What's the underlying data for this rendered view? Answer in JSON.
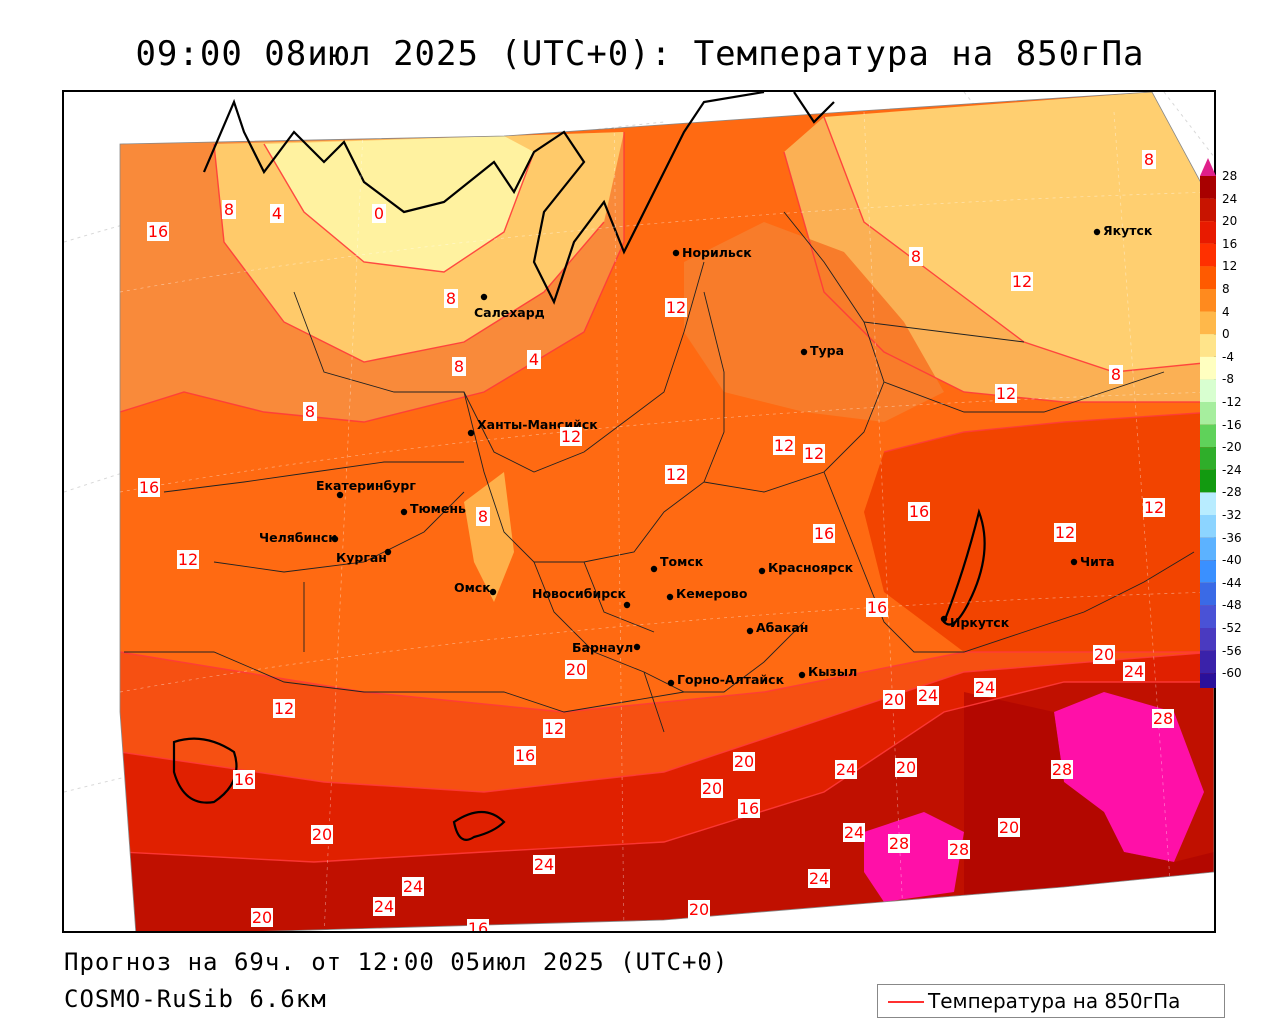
{
  "title": "09:00 08июл 2025 (UTC+0): Температура на 850гПа",
  "footer": {
    "forecast": "Прогноз на 69ч. от 12:00 05июл 2025 (UTC+0)",
    "model": "COSMO-RuSib 6.6км"
  },
  "legend": {
    "label": "Температура на 850гПа",
    "line_color": "#ff3030"
  },
  "colors": {
    "c0": "#fffbb0",
    "c4": "#ffe37a",
    "c8": "#f9a24a",
    "c12": "#ff6a12",
    "c16": "#ff4a00",
    "c20": "#e81a00",
    "c24": "#c81400",
    "c28": "#a80000",
    "c28plus": "#ff00aa",
    "label_text": "#ff0000",
    "coast": "#000000"
  },
  "scale": {
    "ticks": [
      "28",
      "24",
      "20",
      "16",
      "12",
      "8",
      "4",
      "0",
      "-4",
      "-8",
      "-12",
      "-16",
      "-20",
      "-24",
      "-28",
      "-32",
      "-36",
      "-40",
      "-44",
      "-48",
      "-52",
      "-56",
      "-60"
    ],
    "swatches": [
      "#a80000",
      "#c81400",
      "#e81a00",
      "#ff3000",
      "#ff5a00",
      "#ff8a1e",
      "#ffb84a",
      "#ffe48a",
      "#ffffc0",
      "#d8ffd0",
      "#a6ee9e",
      "#5fd25a",
      "#2fae2a",
      "#129a10",
      "#b8ecff",
      "#8cd4ff",
      "#5cb2ff",
      "#3a90ff",
      "#3a6ae6",
      "#4a52d6",
      "#4a3ac0",
      "#3a22aa",
      "#2a109a",
      "#1a0088"
    ]
  },
  "cities": [
    {
      "name": "Норильск",
      "id": "norilsk"
    },
    {
      "name": "Якутск",
      "id": "yakutsk"
    },
    {
      "name": "Салехард",
      "id": "salekhard"
    },
    {
      "name": "Тура",
      "id": "tura"
    },
    {
      "name": "Ханты-Мансийск",
      "id": "khanty"
    },
    {
      "name": "Екатеринбург",
      "id": "ekat"
    },
    {
      "name": "Тюмень",
      "id": "tyumen"
    },
    {
      "name": "Челябинск",
      "id": "chel"
    },
    {
      "name": "Курган",
      "id": "kurgan"
    },
    {
      "name": "Омск",
      "id": "omsk"
    },
    {
      "name": "Новосибирск",
      "id": "nsk"
    },
    {
      "name": "Томск",
      "id": "tomsk"
    },
    {
      "name": "Кемерово",
      "id": "kemerovo"
    },
    {
      "name": "Красноярск",
      "id": "krasnoyarsk"
    },
    {
      "name": "Абакан",
      "id": "abakan"
    },
    {
      "name": "Барнаул",
      "id": "barnaul"
    },
    {
      "name": "Горно-Алтайск",
      "id": "gorno"
    },
    {
      "name": "Кызыл",
      "id": "kyzyl"
    },
    {
      "name": "Иркутск",
      "id": "irkutsk"
    },
    {
      "name": "Чита",
      "id": "chita"
    }
  ],
  "isolines": [
    "8",
    "4",
    "0",
    "16",
    "8",
    "8",
    "8",
    "4",
    "8",
    "12",
    "8",
    "12",
    "8",
    "12",
    "12",
    "12",
    "12",
    "12",
    "16",
    "16",
    "12",
    "12",
    "8",
    "12",
    "16",
    "16",
    "20",
    "24",
    "20",
    "24",
    "24",
    "28",
    "12",
    "12",
    "16",
    "16",
    "20",
    "20",
    "16",
    "24",
    "20",
    "24",
    "28",
    "20",
    "28",
    "28",
    "24",
    "20",
    "24",
    "24",
    "24",
    "20",
    "20",
    "16",
    "20"
  ]
}
